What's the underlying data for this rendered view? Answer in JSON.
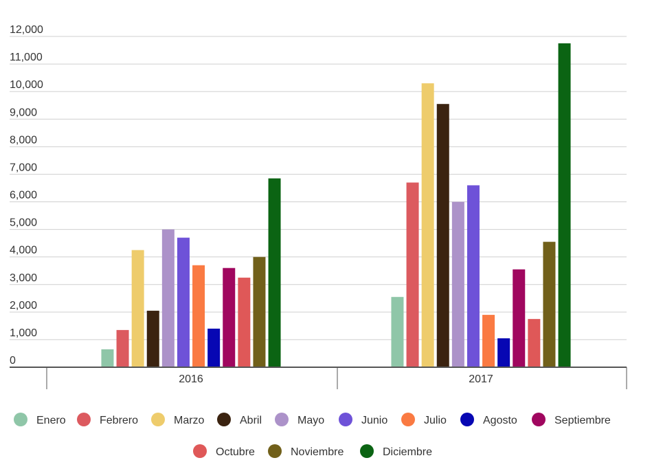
{
  "chart_data": {
    "type": "bar",
    "title": "",
    "xlabel": "",
    "ylabel": "",
    "categories": [
      "2016",
      "2017"
    ],
    "ylim": [
      0,
      12000
    ],
    "yticks": [
      0,
      1000,
      2000,
      3000,
      4000,
      5000,
      6000,
      7000,
      8000,
      9000,
      10000,
      11000,
      12000
    ],
    "ytick_labels": [
      "0",
      "1,000",
      "2,000",
      "3,000",
      "4,000",
      "5,000",
      "6,000",
      "7,000",
      "8,000",
      "9,000",
      "10,000",
      "11,000",
      "12,000"
    ],
    "grid": true,
    "legend_position": "bottom",
    "series": [
      {
        "name": "Enero",
        "color": "#8fc6a8",
        "values": [
          650,
          2550
        ]
      },
      {
        "name": "Febrero",
        "color": "#dc5a5f",
        "values": [
          1350,
          6700
        ]
      },
      {
        "name": "Marzo",
        "color": "#eecc6c",
        "values": [
          4250,
          10300
        ]
      },
      {
        "name": "Abril",
        "color": "#3b2310",
        "values": [
          2050,
          9550
        ]
      },
      {
        "name": "Mayo",
        "color": "#ac92c9",
        "values": [
          5000,
          6000
        ]
      },
      {
        "name": "Junio",
        "color": "#6e52d8",
        "values": [
          4700,
          6600
        ]
      },
      {
        "name": "Julio",
        "color": "#fa7a42",
        "values": [
          3700,
          1900
        ]
      },
      {
        "name": "Agosto",
        "color": "#0707b3",
        "values": [
          1400,
          1050
        ]
      },
      {
        "name": "Septiembre",
        "color": "#a0075f",
        "values": [
          3600,
          3550
        ]
      },
      {
        "name": "Octubre",
        "color": "#df5858",
        "values": [
          3250,
          1750
        ]
      },
      {
        "name": "Noviembre",
        "color": "#71601a",
        "values": [
          4000,
          4550
        ]
      },
      {
        "name": "Diciembre",
        "color": "#0b6413",
        "values": [
          6850,
          11750
        ]
      }
    ]
  }
}
